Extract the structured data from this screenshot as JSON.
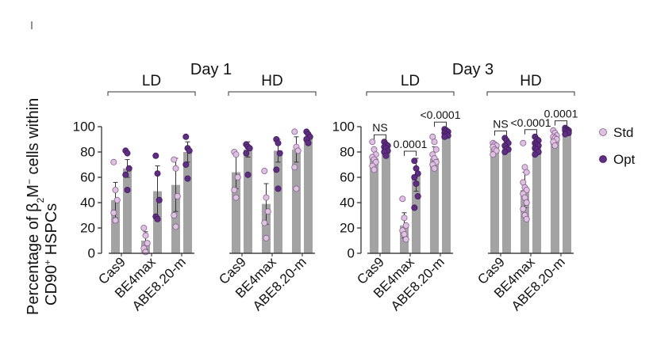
{
  "chart_data": {
    "type": "bar",
    "ylabel_main": "Percentage of β",
    "ylabel_sub": "2",
    "ylabel_rest": "M",
    "ylabel_sup": "−",
    "ylabel_tail": " cells within",
    "ylabel2_main": "CD90",
    "ylabel2_sup": "+",
    "ylabel2_tail": " HSPCs",
    "yticks": [
      "0",
      "20",
      "40",
      "60",
      "80",
      "100"
    ],
    "ylim": [
      0,
      100
    ],
    "categories": [
      "Cas9",
      "BE4max",
      "ABE8.20-m"
    ],
    "legend": [
      {
        "name": "Std",
        "color": "#dcc2df"
      },
      {
        "name": "Opt",
        "color": "#5f2d82"
      }
    ],
    "panels": [
      {
        "title": "Day 1",
        "groups": [
          {
            "label": "LD",
            "bars": [
              {
                "category": "Cas9",
                "std": {
                  "mean": 42,
                  "sd": 14,
                  "points": [
                    72,
                    50,
                    42,
                    32,
                    26
                  ]
                },
                "opt": {
                  "mean": 67,
                  "sd": 7,
                  "points": [
                    81,
                    79,
                    67,
                    62,
                    50
                  ]
                }
              },
              {
                "category": "BE4max",
                "std": {
                  "mean": 10,
                  "sd": 7,
                  "points": [
                    20,
                    14,
                    8,
                    4,
                    1
                  ]
                },
                "opt": {
                  "mean": 49,
                  "sd": 20,
                  "points": [
                    77,
                    63,
                    42,
                    29,
                    27
                  ]
                }
              },
              {
                "category": "ABE8.20-m",
                "std": {
                  "mean": 54,
                  "sd": 21,
                  "points": [
                    74,
                    67,
                    45,
                    30,
                    21
                  ]
                },
                "opt": {
                  "mean": 80,
                  "sd": 8,
                  "points": [
                    92,
                    83,
                    81,
                    70,
                    59
                  ]
                }
              }
            ]
          },
          {
            "label": "HD",
            "bars": [
              {
                "category": "Cas9",
                "std": {
                  "mean": 64,
                  "sd": 13,
                  "points": [
                    80,
                    78,
                    60,
                    50,
                    44
                  ]
                },
                "opt": {
                  "mean": 82,
                  "sd": 6,
                  "points": [
                    86,
                    84,
                    83,
                    79,
                    62
                  ]
                }
              },
              {
                "category": "BE4max",
                "std": {
                  "mean": 39,
                  "sd": 16,
                  "points": [
                    65,
                    44,
                    33,
                    24,
                    12
                  ]
                },
                "opt": {
                  "mean": 81,
                  "sd": 9,
                  "points": [
                    90,
                    87,
                    79,
                    66,
                    51
                  ]
                }
              },
              {
                "category": "ABE8.20-m",
                "std": {
                  "mean": 82,
                  "sd": 10,
                  "points": [
                    96,
                    84,
                    81,
                    68,
                    51
                  ]
                },
                "opt": {
                  "mean": 92,
                  "sd": 3,
                  "points": [
                    96,
                    94,
                    92,
                    90,
                    87
                  ]
                }
              }
            ]
          }
        ]
      },
      {
        "title": "Day 3",
        "groups": [
          {
            "label": "LD",
            "bars": [
              {
                "category": "Cas9",
                "std": {
                  "mean": 75,
                  "sd": 8,
                  "points": [
                    88,
                    82,
                    78,
                    76,
                    74,
                    72,
                    69,
                    66
                  ]
                },
                "opt": {
                  "mean": 83,
                  "sd": 4,
                  "points": [
                    88,
                    86,
                    85,
                    84,
                    83,
                    81,
                    80,
                    77
                  ]
                }
              },
              {
                "category": "BE4max",
                "std": {
                  "mean": 22,
                  "sd": 10,
                  "points": [
                    43,
                    28,
                    22,
                    18,
                    15,
                    11
                  ]
                },
                "opt": {
                  "mean": 62,
                  "sd": 13,
                  "points": [
                    73,
                    67,
                    63,
                    60,
                    55,
                    45,
                    36
                  ]
                }
              },
              {
                "category": "ABE8.20-m",
                "std": {
                  "mean": 75,
                  "sd": 9,
                  "points": [
                    92,
                    88,
                    82,
                    78,
                    75,
                    72,
                    70,
                    67
                  ]
                },
                "opt": {
                  "mean": 95,
                  "sd": 2,
                  "points": [
                    98,
                    97,
                    96,
                    95,
                    94,
                    93,
                    92
                  ]
                }
              }
            ],
            "annotations": [
              {
                "category": "Cas9",
                "text": "NS"
              },
              {
                "category": "BE4max",
                "text": "0.0001"
              },
              {
                "category": "ABE8.20-m",
                "text": "<0.0001"
              }
            ]
          },
          {
            "label": "HD",
            "bars": [
              {
                "category": "Cas9",
                "std": {
                  "mean": 84,
                  "sd": 3,
                  "points": [
                    87,
                    86,
                    85,
                    84,
                    82,
                    81,
                    78
                  ]
                },
                "opt": {
                  "mean": 84,
                  "sd": 4,
                  "points": [
                    91,
                    89,
                    87,
                    85,
                    83,
                    82,
                    80
                  ]
                }
              },
              {
                "category": "BE4max",
                "std": {
                  "mean": 50,
                  "sd": 14,
                  "points": [
                    87,
                    68,
                    64,
                    56,
                    52,
                    50,
                    47,
                    44,
                    40,
                    35,
                    30,
                    27
                  ]
                },
                "opt": {
                  "mean": 85,
                  "sd": 5,
                  "points": [
                    92,
                    90,
                    89,
                    87,
                    86,
                    85,
                    83,
                    82,
                    80,
                    78
                  ]
                }
              },
              {
                "category": "ABE8.20-m",
                "std": {
                  "mean": 92,
                  "sd": 4,
                  "points": [
                    97,
                    95,
                    93,
                    92,
                    91,
                    90,
                    88,
                    85
                  ]
                },
                "opt": {
                  "mean": 96,
                  "sd": 2,
                  "points": [
                    99,
                    98,
                    97,
                    97,
                    96,
                    95,
                    94
                  ]
                }
              }
            ],
            "annotations": [
              {
                "category": "Cas9",
                "text": "NS"
              },
              {
                "category": "BE4max",
                "text": "<0.0001"
              },
              {
                "category": "ABE8.20-m",
                "text": "0.0001"
              }
            ]
          }
        ]
      }
    ]
  }
}
